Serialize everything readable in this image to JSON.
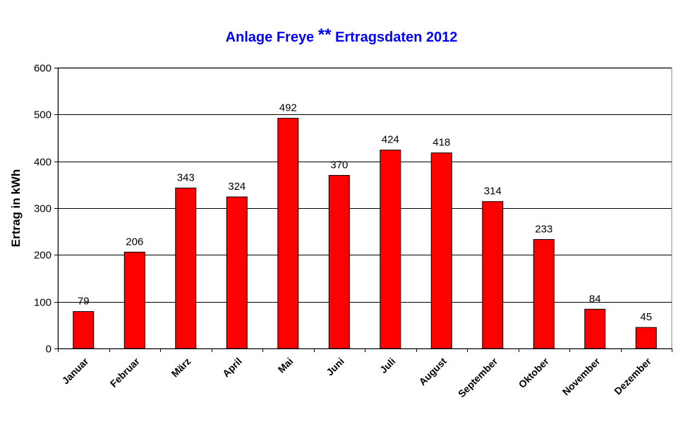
{
  "chart_data": {
    "type": "bar",
    "title_part1": "Anlage Freye",
    "title_stars": "**",
    "title_part2": "Ertragsdaten 2012",
    "xlabel": "",
    "ylabel": "Ertrag in kWh",
    "ylim": [
      0,
      600
    ],
    "yticks": [
      0,
      100,
      200,
      300,
      400,
      500,
      600
    ],
    "categories": [
      "Januar",
      "Februar",
      "März",
      "April",
      "Mai",
      "Juni",
      "Juli",
      "August",
      "September",
      "Oktober",
      "November",
      "Dezember"
    ],
    "values": [
      79,
      206,
      343,
      324,
      492,
      370,
      424,
      418,
      314,
      233,
      84,
      45
    ],
    "grid": true,
    "legend": "none",
    "bar_color": "#ff0000",
    "title_color": "#0000ff"
  }
}
